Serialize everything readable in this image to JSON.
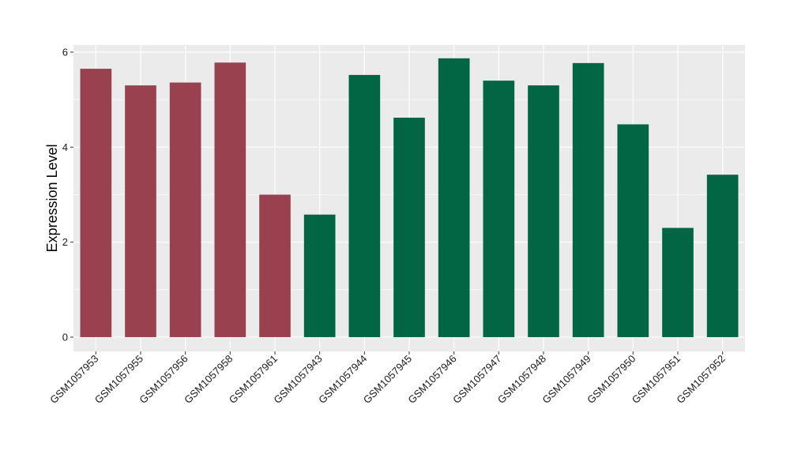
{
  "chart_data": {
    "type": "bar",
    "title": "",
    "xlabel": "",
    "ylabel": "Expression Level",
    "ylim": [
      -0.3,
      6.15
    ],
    "yticks": [
      0,
      2,
      4,
      6
    ],
    "grid": true,
    "legend": "none",
    "categories": [
      "GSM1057953",
      "GSM1057955",
      "GSM1057956",
      "GSM1057958",
      "GSM1057961",
      "GSM1057943",
      "GSM1057944",
      "GSM1057945",
      "GSM1057946",
      "GSM1057947",
      "GSM1057948",
      "GSM1057949",
      "GSM1057950",
      "GSM1057951",
      "GSM1057952"
    ],
    "values": [
      5.65,
      5.3,
      5.36,
      5.78,
      3.0,
      2.58,
      5.52,
      4.62,
      5.87,
      5.4,
      5.3,
      5.77,
      4.48,
      2.3,
      3.42
    ],
    "groups": [
      "group1",
      "group1",
      "group1",
      "group1",
      "group1",
      "group2",
      "group2",
      "group2",
      "group2",
      "group2",
      "group2",
      "group2",
      "group2",
      "group2",
      "group2"
    ],
    "colors": {
      "group1": "#9a4150",
      "group2": "#026644",
      "panel": "#ebebeb",
      "gridline": "#ffffff"
    }
  }
}
